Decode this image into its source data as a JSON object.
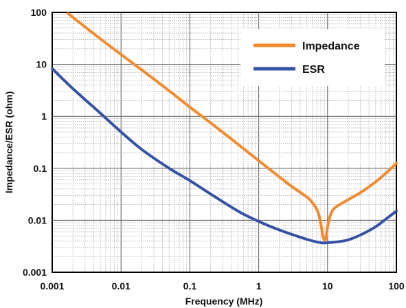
{
  "chart_data": {
    "type": "line",
    "xlabel": "Frequency  (MHz)",
    "ylabel": "Impedance/ESR (ohm)",
    "xscale": "log",
    "yscale": "log",
    "xlim": [
      0.001,
      100
    ],
    "ylim": [
      0.001,
      100
    ],
    "grid": true,
    "legend": "top-right",
    "x_ticks": [
      {
        "value": 0.001,
        "label": "0.001"
      },
      {
        "value": 0.01,
        "label": "0.01"
      },
      {
        "value": 0.1,
        "label": "0.1"
      },
      {
        "value": 1,
        "label": "1"
      },
      {
        "value": 10,
        "label": "10"
      },
      {
        "value": 100,
        "label": "100"
      }
    ],
    "y_ticks": [
      {
        "value": 100,
        "label": "100"
      },
      {
        "value": 10,
        "label": "10"
      },
      {
        "value": 1,
        "label": "1"
      },
      {
        "value": 0.1,
        "label": "0.1"
      },
      {
        "value": 0.01,
        "label": "0.01"
      },
      {
        "value": 0.001,
        "label": "0.001"
      }
    ],
    "series": [
      {
        "name": "Impedance",
        "color": "#F28A2E",
        "x": [
          0.0017,
          0.002,
          0.005,
          0.01,
          0.02,
          0.05,
          0.1,
          0.2,
          0.5,
          1,
          2,
          3,
          5,
          6,
          7,
          7.5,
          8,
          8.5,
          9,
          9.5,
          10,
          10.5,
          11,
          12,
          14,
          16,
          20,
          30,
          50,
          70,
          100
        ],
        "y": [
          95,
          80,
          31,
          15.5,
          7.8,
          3.1,
          1.5,
          0.75,
          0.29,
          0.14,
          0.068,
          0.045,
          0.028,
          0.022,
          0.016,
          0.0125,
          0.0085,
          0.0052,
          0.0042,
          0.0046,
          0.0075,
          0.01,
          0.0125,
          0.016,
          0.019,
          0.021,
          0.025,
          0.034,
          0.055,
          0.08,
          0.125
        ]
      },
      {
        "name": "ESR",
        "color": "#3552A5",
        "x": [
          0.001,
          0.002,
          0.005,
          0.01,
          0.02,
          0.05,
          0.1,
          0.2,
          0.5,
          1,
          2,
          5,
          8,
          10,
          15,
          20,
          30,
          50,
          70,
          100
        ],
        "y": [
          8.3,
          3.4,
          1.15,
          0.5,
          0.23,
          0.1,
          0.058,
          0.032,
          0.015,
          0.0095,
          0.0065,
          0.0043,
          0.0037,
          0.0037,
          0.0039,
          0.0042,
          0.0052,
          0.0075,
          0.0105,
          0.015
        ]
      }
    ]
  }
}
